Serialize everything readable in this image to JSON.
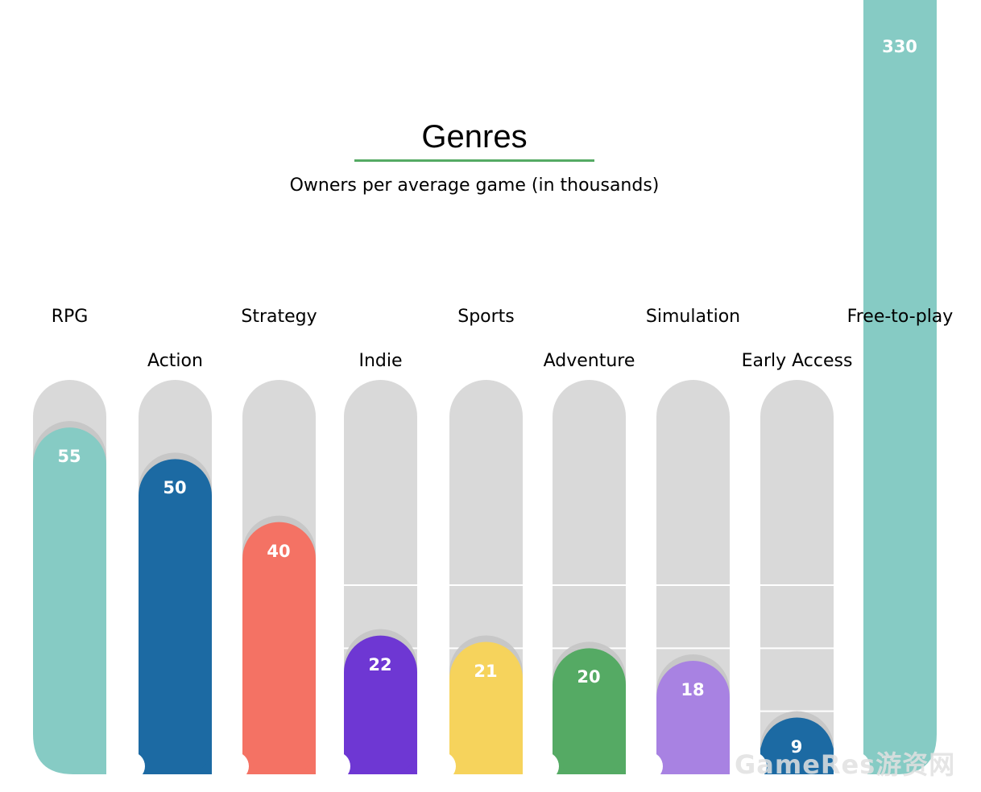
{
  "chart_data": {
    "type": "bar",
    "title": "Genres",
    "subtitle": "Owners per average game (in thousands)",
    "categories": [
      "RPG",
      "Action",
      "Strategy",
      "Indie",
      "Sports",
      "Adventure",
      "Simulation",
      "Early Access",
      "Free-to-play"
    ],
    "values": [
      55,
      50,
      40,
      22,
      21,
      20,
      18,
      9,
      330
    ],
    "value_labels": [
      "55",
      "50",
      "40",
      "22",
      "21",
      "20",
      "18",
      "9",
      "330"
    ],
    "colors": [
      "#86CBC4",
      "#1C6AA3",
      "#F47264",
      "#6E37D3",
      "#F6D35C",
      "#55AA64",
      "#A882E2",
      "#1C6AA3",
      "#86CBC4"
    ],
    "track_color": "#D9D9D9",
    "title_rule_color": "#55AA64",
    "ylim": [
      0,
      60
    ],
    "grid": true,
    "legend": "none"
  },
  "watermark": "GameRes游资网"
}
